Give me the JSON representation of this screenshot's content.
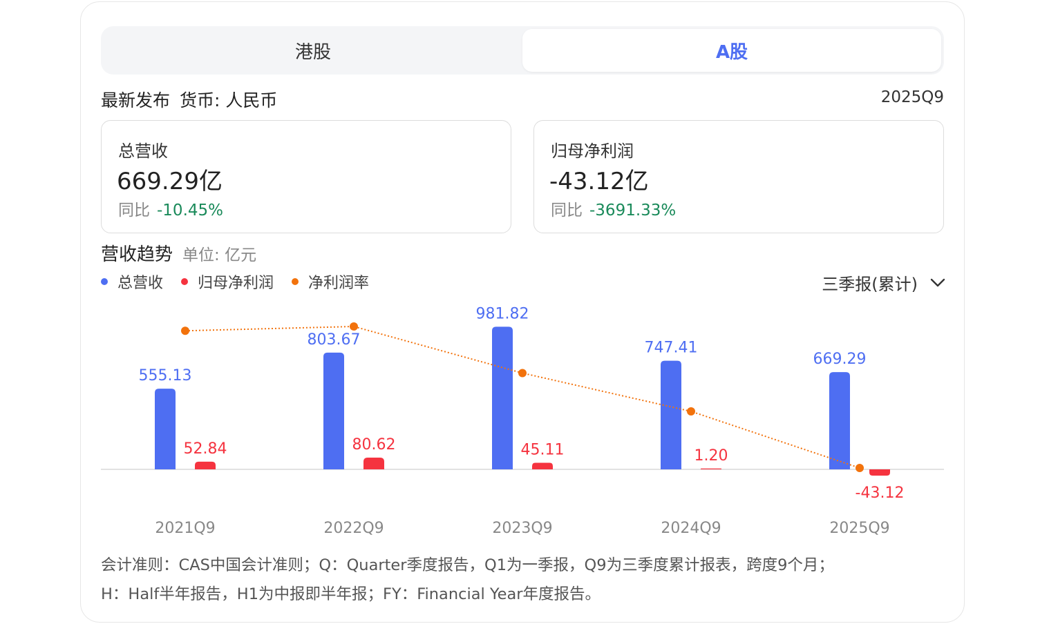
{
  "tabs": [
    {
      "label": "港股",
      "active": false
    },
    {
      "label": "A股",
      "active": true
    }
  ],
  "meta": {
    "latest_label": "最新发布",
    "currency_label": "货币: 人民币",
    "period": "2025Q9"
  },
  "kpis": [
    {
      "label": "总营收",
      "value": "669.29亿",
      "yoy_label": "同比",
      "yoy_value": "-10.45%"
    },
    {
      "label": "归母净利润",
      "value": "-43.12亿",
      "yoy_label": "同比",
      "yoy_value": "-3691.33%"
    }
  ],
  "section": {
    "title": "营收趋势",
    "unit": "单位: 亿元"
  },
  "period_select": {
    "selected": "三季报(累计)"
  },
  "colors": {
    "revenue": "#4e6ef2",
    "profit": "#f5333f",
    "margin": "#f2720c",
    "positive_change": "#1a8a5a"
  },
  "chart_data": {
    "type": "bar",
    "categories": [
      "2021Q9",
      "2022Q9",
      "2023Q9",
      "2024Q9",
      "2025Q9"
    ],
    "series": [
      {
        "name": "总营收",
        "type": "bar",
        "values": [
          555.13,
          803.67,
          981.82,
          747.41,
          669.29
        ],
        "labels": [
          "555.13",
          "803.67",
          "981.82",
          "747.41",
          "669.29"
        ]
      },
      {
        "name": "归母净利润",
        "type": "bar",
        "values": [
          52.84,
          80.62,
          45.11,
          1.2,
          -43.12
        ],
        "labels": [
          "52.84",
          "80.62",
          "45.11",
          "1.20",
          "-43.12"
        ]
      },
      {
        "name": "净利润率",
        "type": "line",
        "values": [
          9.5,
          10.0,
          4.6,
          0.16,
          -6.4
        ]
      }
    ],
    "legend_position": "top-left",
    "grid": false
  },
  "footnote": {
    "line1": "会计准则：CAS中国会计准则；Q：Quarter季度报告，Q1为一季报，Q9为三季度累计报表，跨度9个月；",
    "line2": "H：Half半年报告，H1为中报即半年报；FY：Financial Year年度报告。"
  }
}
